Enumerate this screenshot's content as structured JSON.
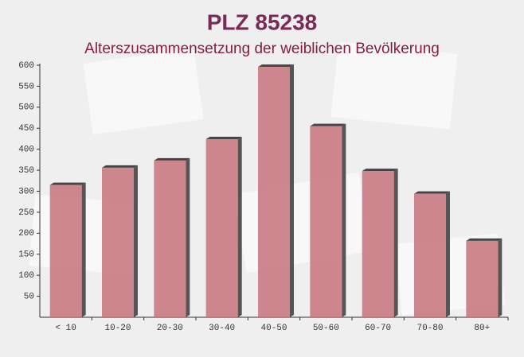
{
  "chart_data": {
    "type": "bar",
    "title": "PLZ 85238",
    "subtitle": "Alterszusammensetzung der weiblichen Bevölkerung",
    "categories": [
      "< 10",
      "10-20",
      "20-30",
      "30-40",
      "40-50",
      "50-60",
      "60-70",
      "70-80",
      "80+"
    ],
    "values": [
      315,
      356,
      373,
      424,
      596,
      455,
      348,
      294,
      182
    ],
    "color": "#c8737d",
    "ylim": [
      0,
      600
    ],
    "yticks": [
      50,
      100,
      150,
      200,
      250,
      300,
      350,
      400,
      450,
      500,
      550,
      600
    ]
  }
}
